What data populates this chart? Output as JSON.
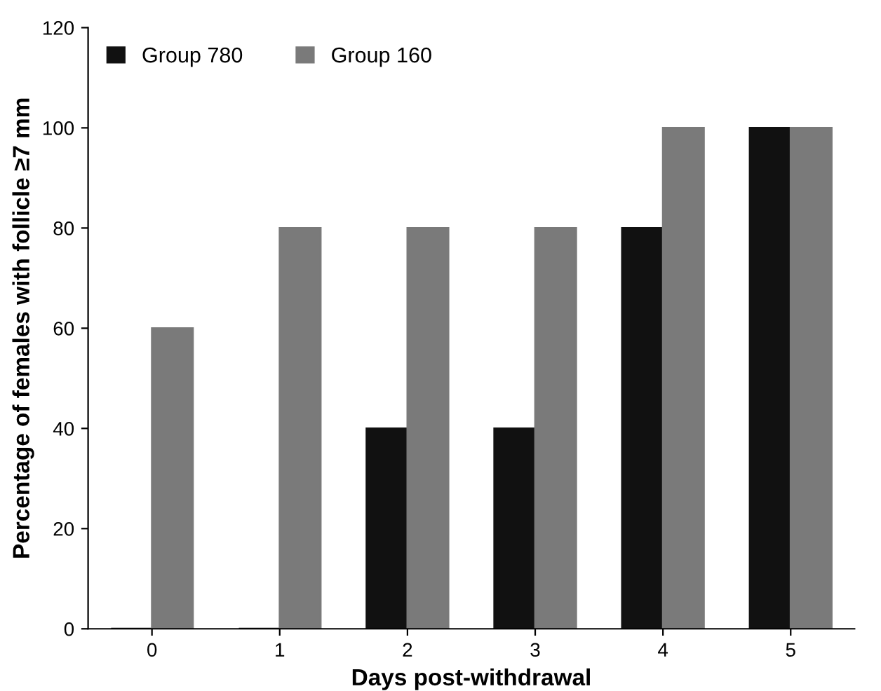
{
  "chart_data": {
    "type": "bar",
    "xlabel": "Days post-withdrawal",
    "ylabel": "Percentage of females with follicle ≥7 mm",
    "categories": [
      "0",
      "1",
      "2",
      "3",
      "4",
      "5"
    ],
    "series": [
      {
        "name": "Group 780",
        "color": "#111111",
        "values": [
          0,
          0,
          40,
          40,
          80,
          100
        ]
      },
      {
        "name": "Group 160",
        "color": "#7a7a7a",
        "values": [
          60,
          80,
          80,
          80,
          100,
          100
        ]
      }
    ],
    "ylim": [
      0,
      120
    ],
    "yticks": [
      0,
      20,
      40,
      60,
      80,
      100,
      120
    ],
    "grid": false,
    "legend": "top left"
  }
}
